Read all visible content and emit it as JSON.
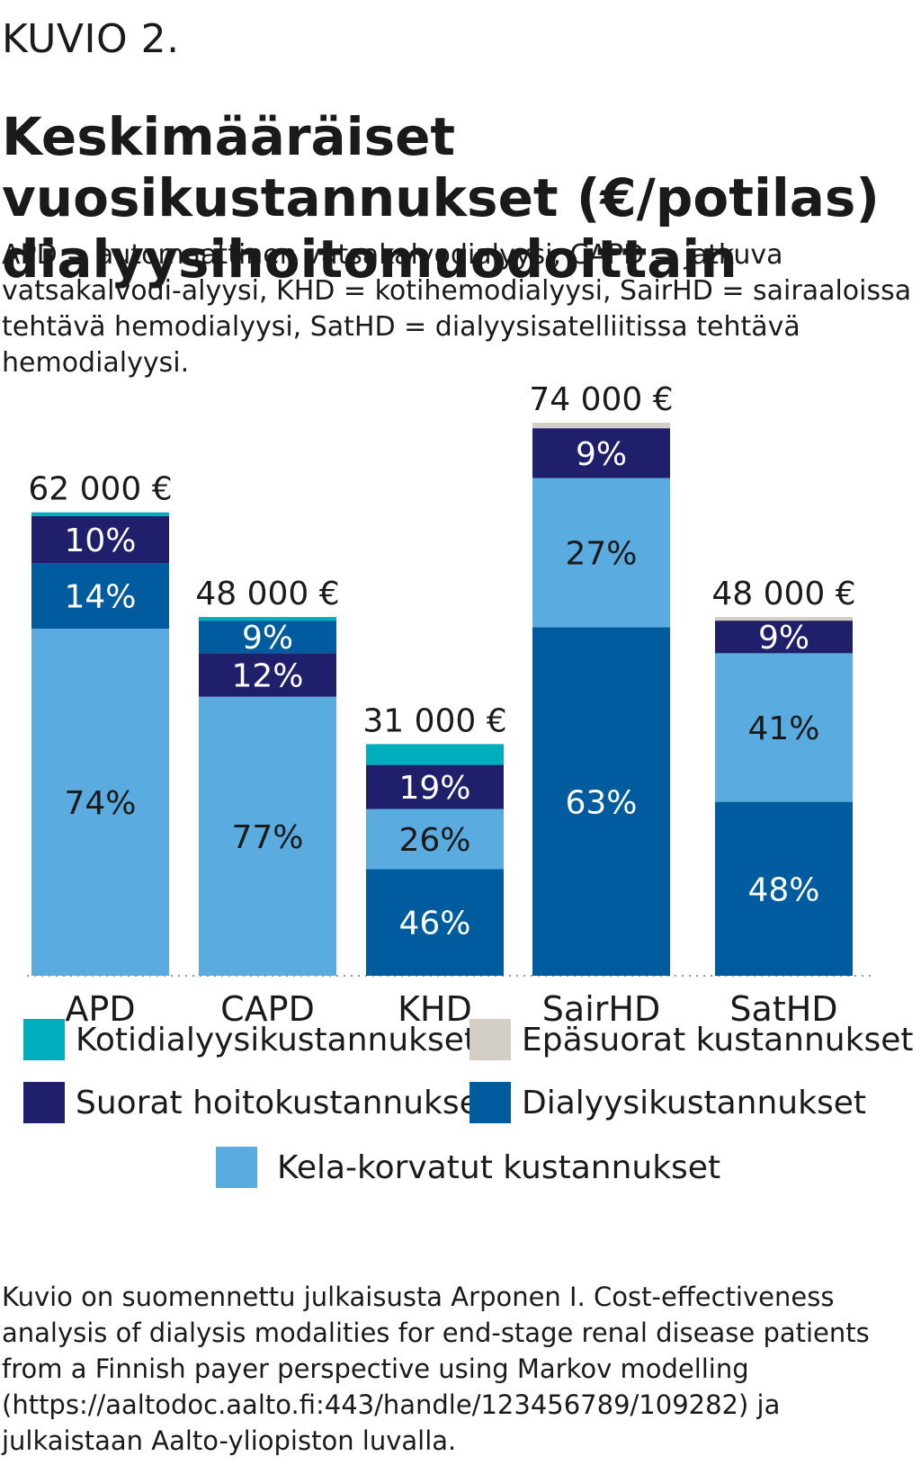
{
  "kicker": "KUVIO 2.",
  "title": "Keskimääräiset vuosikustannukset (€/potilas) dialyysihoitomuodoittain",
  "subtitle": "APD = automaattinen vatsakalvodialyysi, CAPD = jatkuva vatsakalvodi-alyysi, KHD = kotihemodialyysi, SairHD = sairaaloissa tehtävä hemodialyysi, SatHD = dialyysisatelliitissa tehtävä hemodialyysi.",
  "colors": {
    "Kotidialyysikustannukset": "#00aebd",
    "Epäsuorat kustannukset": "#d3cfc6",
    "Suorat hoitokustannukset": "#1f1f6b",
    "Dialyysikustannukset": "#005c9e",
    "Kela-korvatut kustannukset": "#5aabe0"
  },
  "legend": [
    {
      "label": "Kotidialyysikustannukset",
      "color": "#00aebd"
    },
    {
      "label": "Epäsuorat kustannukset",
      "color": "#d3cfc6"
    },
    {
      "label": "Suorat hoitokustannukset",
      "color": "#1f1f6b"
    },
    {
      "label": "Dialyysikustannukset",
      "color": "#005c9e"
    },
    {
      "label": "Kela-korvatut kustannukset",
      "color": "#5aabe0"
    }
  ],
  "chart_data": {
    "type": "bar",
    "stacked": true,
    "unit": "€",
    "categories": [
      "APD",
      "CAPD",
      "KHD",
      "SairHD",
      "SatHD"
    ],
    "totals": [
      62000,
      48000,
      31000,
      74000,
      48000
    ],
    "total_labels": [
      "62 000 €",
      "48 000 €",
      "31 000 €",
      "74 000 €",
      "48 000 €"
    ],
    "segments": [
      [
        {
          "series": "Kela-korvatut kustannukset",
          "pct": 74,
          "label": "74%"
        },
        {
          "series": "Dialyysikustannukset",
          "pct": 14,
          "label": "14%"
        },
        {
          "series": "Suorat hoitokustannukset",
          "pct": 10,
          "label": "10%"
        },
        {
          "series": "Kotidialyysikustannukset",
          "pct": 0.8,
          "label": ""
        }
      ],
      [
        {
          "series": "Kela-korvatut kustannukset",
          "pct": 77,
          "label": "77%"
        },
        {
          "series": "Suorat hoitokustannukset",
          "pct": 12,
          "label": "12%"
        },
        {
          "series": "Dialyysikustannukset",
          "pct": 9,
          "label": "9%"
        },
        {
          "series": "Kotidialyysikustannukset",
          "pct": 1,
          "label": ""
        }
      ],
      [
        {
          "series": "Dialyysikustannukset",
          "pct": 46,
          "label": "46%"
        },
        {
          "series": "Kela-korvatut kustannukset",
          "pct": 26,
          "label": "26%"
        },
        {
          "series": "Suorat hoitokustannukset",
          "pct": 19,
          "label": "19%"
        },
        {
          "series": "Kotidialyysikustannukset",
          "pct": 9,
          "label": ""
        }
      ],
      [
        {
          "series": "Dialyysikustannukset",
          "pct": 63,
          "label": "63%"
        },
        {
          "series": "Kela-korvatut kustannukset",
          "pct": 27,
          "label": "27%"
        },
        {
          "series": "Suorat hoitokustannukset",
          "pct": 9,
          "label": "9%"
        },
        {
          "series": "Epäsuorat kustannukset",
          "pct": 1,
          "label": ""
        }
      ],
      [
        {
          "series": "Dialyysikustannukset",
          "pct": 48,
          "label": "48%"
        },
        {
          "series": "Kela-korvatut kustannukset",
          "pct": 41,
          "label": "41%"
        },
        {
          "series": "Suorat hoitokustannukset",
          "pct": 9,
          "label": "9%"
        },
        {
          "series": "Epäsuorat kustannukset",
          "pct": 1,
          "label": ""
        }
      ]
    ],
    "ylim": [
      0,
      74000
    ],
    "grid": false,
    "legend_position": "bottom"
  },
  "source": "Kuvio on suomennettu julkaisusta Arponen I. Cost-effectiveness analysis of dialysis modalities for end-stage renal disease patients from a Finnish payer perspective using Markov modelling (https://aaltodoc.aalto.fi:443/handle/123456789/109282) ja julkaistaan Aalto-yliopiston luvalla."
}
